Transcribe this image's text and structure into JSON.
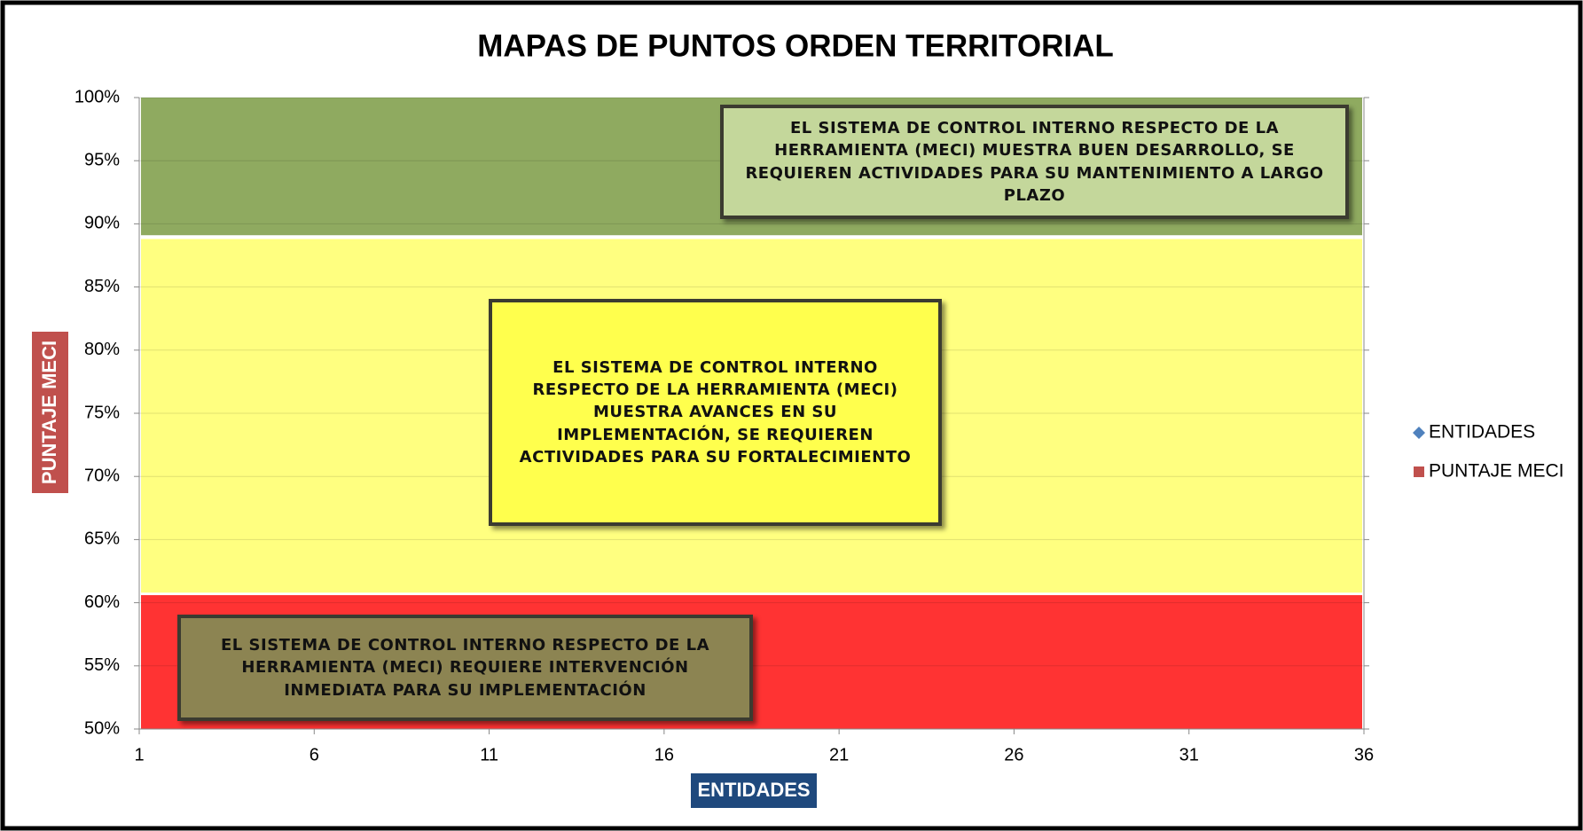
{
  "chart_data": {
    "type": "scatter",
    "title": "MAPAS DE PUNTOS ORDEN TERRITORIAL",
    "x_label": "ENTIDADES",
    "y_label": "PUNTAJE MECI",
    "xlim": [
      1,
      36
    ],
    "xticks": [
      1,
      6,
      11,
      16,
      21,
      26,
      31,
      36
    ],
    "ylim": [
      50,
      100
    ],
    "yticks": [
      {
        "value": 50,
        "label": "50%"
      },
      {
        "value": 55,
        "label": "55%"
      },
      {
        "value": 60,
        "label": "60%"
      },
      {
        "value": 65,
        "label": "65%"
      },
      {
        "value": 70,
        "label": "70%"
      },
      {
        "value": 75,
        "label": "75%"
      },
      {
        "value": 80,
        "label": "80%"
      },
      {
        "value": 85,
        "label": "85%"
      },
      {
        "value": 90,
        "label": "90%"
      },
      {
        "value": 95,
        "label": "95%"
      },
      {
        "value": 100,
        "label": "100%"
      }
    ],
    "grid": true,
    "legend": "right",
    "series": [
      {
        "name": "ENTIDADES",
        "color": "#4f81bd",
        "marker": "diamond",
        "x": [],
        "values": []
      },
      {
        "name": "PUNTAJE MECI",
        "color": "#c0504d",
        "marker": "square",
        "x": [],
        "values": []
      }
    ],
    "bands": [
      {
        "from": 89.1,
        "to": 100,
        "color": "#8faa60",
        "box_color": "#c4d79b",
        "text": "EL SISTEMA DE CONTROL INTERNO  RESPECTO DE LA HERRAMIENTA (MECI) MUESTRA BUEN DESARROLLO, SE REQUIEREN ACTIVIDADES PARA SU MANTENIMIENTO A LARGO PLAZO"
      },
      {
        "from": 60.8,
        "to": 88.8,
        "color": "#ffff80",
        "box_color": "#ffff4d",
        "text": "EL SISTEMA DE CONTROL INTERNO RESPECTO DE LA HERRAMIENTA (MECI) MUESTRA AVANCES EN SU IMPLEMENTACIÓN, SE REQUIEREN ACTIVIDADES PARA SU FORTALECIMIENTO"
      },
      {
        "from": 50,
        "to": 60.6,
        "color": "#ff3333",
        "box_color": "#8c8452",
        "text": "EL SISTEMA DE CONTROL INTERNO RESPECTO DE LA HERRAMIENTA (MECI) REQUIERE INTERVENCIÓN INMEDIATA PARA SU IMPLEMENTACIÓN"
      }
    ]
  }
}
